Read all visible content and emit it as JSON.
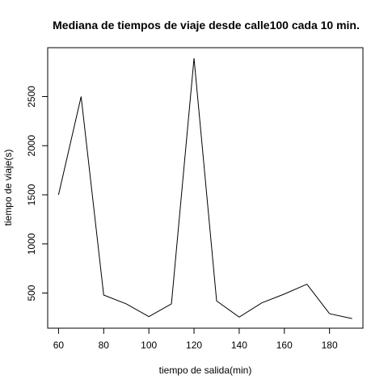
{
  "chart_data": {
    "type": "line",
    "title": "Mediana de tiempos de viaje desde calle100 cada 10 min.",
    "xlabel": "tiempo de salida(min)",
    "ylabel": "tiempo de viaje(s)",
    "x": [
      60,
      70,
      80,
      90,
      100,
      110,
      120,
      130,
      140,
      150,
      160,
      170,
      180,
      190
    ],
    "series": [
      {
        "values": [
          1500,
          2500,
          480,
          390,
          260,
          390,
          2890,
          420,
          255,
          400,
          490,
          590,
          290,
          240
        ]
      }
    ],
    "xlim": [
      55.2,
      194.8
    ],
    "ylim": [
      142.4,
      2997.6
    ],
    "xticks": [
      60,
      80,
      100,
      120,
      140,
      160,
      180
    ],
    "yticks": [
      500,
      1000,
      1500,
      2000,
      2500
    ],
    "line_color": "#000000",
    "grid": false,
    "legend": false
  }
}
